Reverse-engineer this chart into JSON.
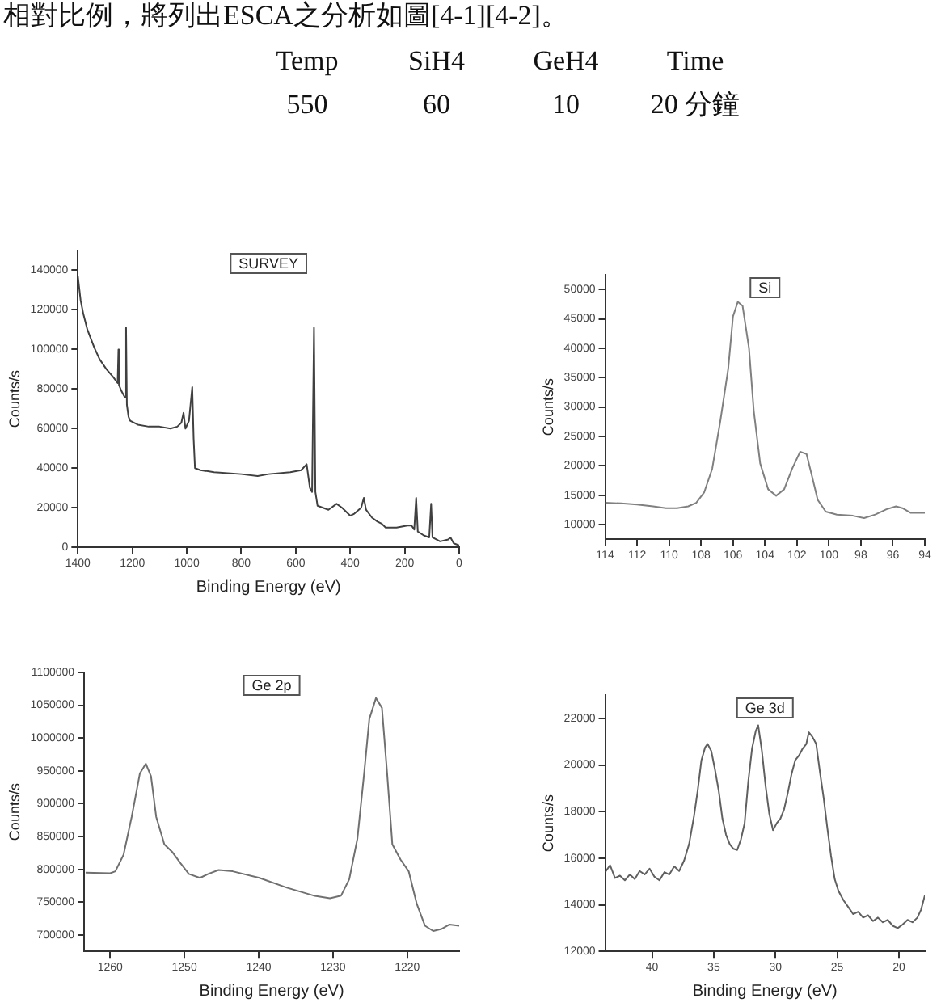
{
  "chart_data": [
    {
      "type": "other",
      "annotations": [
        "相對比例，將列出ESCA之分析如圖[4-1][4-2]。",
        "Temp",
        "SiH4",
        "GeH4",
        "Time",
        "550",
        "60",
        "10",
        "20 分鐘"
      ]
    },
    {
      "type": "line",
      "title": "SURVEY",
      "xlabel": "Binding Energy (eV)",
      "ylabel": "Counts/s",
      "color": "#404040",
      "x": [
        1400,
        1390,
        1380,
        1365,
        1340,
        1320,
        1295,
        1270,
        1254,
        1251,
        1249,
        1240,
        1228,
        1223,
        1220,
        1214,
        1208,
        1180,
        1140,
        1100,
        1060,
        1035,
        1020,
        1012,
        1005,
        992,
        980,
        975,
        970,
        950,
        900,
        800,
        740,
        700,
        620,
        580,
        560,
        548,
        540,
        533,
        528,
        520,
        500,
        480,
        450,
        430,
        400,
        385,
        360,
        350,
        342,
        320,
        300,
        285,
        270,
        230,
        190,
        175,
        165,
        158,
        152,
        130,
        110,
        103,
        98,
        70,
        40,
        32,
        20,
        0
      ],
      "values": [
        137000,
        125000,
        118000,
        110000,
        101000,
        95000,
        90000,
        86000,
        83000,
        100000,
        82000,
        79000,
        76000,
        111000,
        72000,
        66000,
        64000,
        62000,
        61000,
        61000,
        60000,
        61000,
        63000,
        68000,
        60000,
        64000,
        81000,
        55000,
        40000,
        39000,
        38000,
        37000,
        36000,
        37000,
        38000,
        39000,
        42000,
        30000,
        28000,
        111000,
        28000,
        21000,
        20000,
        19000,
        22000,
        20000,
        16000,
        17000,
        20000,
        25000,
        19000,
        15000,
        13000,
        12000,
        10000,
        10000,
        11000,
        11000,
        9000,
        25000,
        8000,
        6000,
        5000,
        22000,
        5000,
        3000,
        4000,
        5000,
        2000,
        1000
      ],
      "xlim": [
        1400,
        0
      ],
      "xticks": [
        1400,
        1200,
        1000,
        800,
        600,
        400,
        200,
        0
      ],
      "ylim": [
        0,
        150000
      ],
      "yticks": [
        0,
        20000,
        40000,
        60000,
        80000,
        100000,
        120000,
        140000
      ]
    },
    {
      "type": "line",
      "title": "Si",
      "ylabel": "Counts/s",
      "color": "#808080",
      "x": [
        114,
        113,
        112,
        111,
        110.2,
        109.5,
        108.8,
        108.3,
        107.8,
        107.3,
        106.8,
        106.3,
        106.0,
        105.7,
        105.4,
        105.0,
        104.7,
        104.3,
        103.8,
        103.3,
        102.8,
        102.3,
        101.8,
        101.4,
        101.1,
        100.7,
        100.2,
        99.5,
        98.5,
        97.8,
        97.1,
        96.4,
        95.8,
        95.4,
        94.9,
        94
      ],
      "values": [
        13700,
        13600,
        13400,
        13100,
        12800,
        12800,
        13100,
        13700,
        15500,
        19500,
        27500,
        36500,
        45400,
        47900,
        47200,
        40000,
        29300,
        20400,
        16000,
        14900,
        16000,
        19500,
        22400,
        22000,
        18700,
        14200,
        12200,
        11700,
        11500,
        11100,
        11700,
        12600,
        13100,
        12800,
        12000,
        12000
      ],
      "xlim": [
        114,
        94
      ],
      "xticks": [
        114,
        112,
        110,
        108,
        106,
        104,
        102,
        100,
        98,
        96,
        94
      ],
      "ylim": [
        7500,
        52500
      ],
      "yticks": [
        10000,
        15000,
        20000,
        25000,
        30000,
        35000,
        40000,
        45000,
        50000
      ]
    },
    {
      "type": "line",
      "title": "Ge 2p",
      "xlabel": "Binding Energy (eV)",
      "ylabel": "Counts/s",
      "color": "#707070",
      "x": [
        1263.3,
        1260,
        1259.3,
        1258.2,
        1257.1,
        1256.0,
        1255.2,
        1254.5,
        1253.8,
        1252.7,
        1251.6,
        1250.5,
        1249.4,
        1247.9,
        1246.8,
        1245.4,
        1243.5,
        1239.9,
        1236.2,
        1232.6,
        1230.4,
        1228.9,
        1227.8,
        1226.7,
        1225.8,
        1225.1,
        1224.2,
        1223.4,
        1222.7,
        1222.0,
        1220.9,
        1219.8,
        1218.7,
        1217.6,
        1216.5,
        1215.4,
        1214.3,
        1213.0
      ],
      "values": [
        795000,
        794000,
        797000,
        822000,
        880000,
        946000,
        961000,
        942000,
        880000,
        838000,
        826000,
        809000,
        793000,
        787000,
        793000,
        799000,
        797000,
        787000,
        772000,
        760000,
        756000,
        760000,
        785000,
        847000,
        946000,
        1029000,
        1061000,
        1046000,
        946000,
        838000,
        815000,
        797000,
        747000,
        714000,
        706000,
        709000,
        716000,
        714000
      ],
      "xlim": [
        1263.5,
        1213
      ],
      "xticks": [
        1260,
        1250,
        1240,
        1230,
        1220
      ],
      "ylim": [
        675000,
        1100000
      ],
      "yticks": [
        700000,
        750000,
        800000,
        850000,
        900000,
        950000,
        1000000,
        1050000,
        1100000
      ]
    },
    {
      "type": "line",
      "title": "Ge 3d",
      "xlabel": "Binding Energy (eV)",
      "ylabel": "Counts/s",
      "color": "#606060",
      "x": [
        43.8,
        43.4,
        43.0,
        42.6,
        42.2,
        41.8,
        41.4,
        41.0,
        40.6,
        40.2,
        39.8,
        39.4,
        39.0,
        38.6,
        38.2,
        37.8,
        37.4,
        37.0,
        36.6,
        36.3,
        36.0,
        35.7,
        35.5,
        35.2,
        34.9,
        34.6,
        34.3,
        34.0,
        33.7,
        33.4,
        33.1,
        32.8,
        32.5,
        32.2,
        31.9,
        31.6,
        31.4,
        31.1,
        30.8,
        30.5,
        30.2,
        29.9,
        29.6,
        29.3,
        29.0,
        28.7,
        28.4,
        28.1,
        27.8,
        27.5,
        27.3,
        27.0,
        26.7,
        26.4,
        26.1,
        25.8,
        25.5,
        25.2,
        24.9,
        24.5,
        24.1,
        23.7,
        23.3,
        22.9,
        22.5,
        22.1,
        21.7,
        21.3,
        20.9,
        20.5,
        20.1,
        19.7,
        19.3,
        18.9,
        18.5,
        18.2,
        17.9
      ],
      "values": [
        15400,
        15700,
        15150,
        15250,
        15050,
        15300,
        15100,
        15450,
        15300,
        15550,
        15200,
        15050,
        15400,
        15300,
        15650,
        15450,
        15900,
        16600,
        17800,
        18900,
        20200,
        20750,
        20900,
        20600,
        19800,
        18900,
        17700,
        17000,
        16600,
        16400,
        16350,
        16800,
        17500,
        19300,
        20700,
        21450,
        21700,
        20600,
        19100,
        17900,
        17200,
        17500,
        17700,
        18100,
        18800,
        19600,
        20200,
        20400,
        20700,
        20900,
        21400,
        21200,
        20900,
        19700,
        18600,
        17300,
        16100,
        15100,
        14600,
        14200,
        13900,
        13600,
        13700,
        13450,
        13550,
        13300,
        13450,
        13250,
        13350,
        13100,
        13000,
        13150,
        13350,
        13250,
        13450,
        13800,
        14400
      ],
      "xlim": [
        43.8,
        17.9
      ],
      "xticks": [
        40,
        35,
        30,
        25,
        20
      ],
      "ylim": [
        12000,
        23000
      ],
      "yticks": [
        12000,
        14000,
        16000,
        18000,
        20000,
        22000
      ]
    }
  ]
}
